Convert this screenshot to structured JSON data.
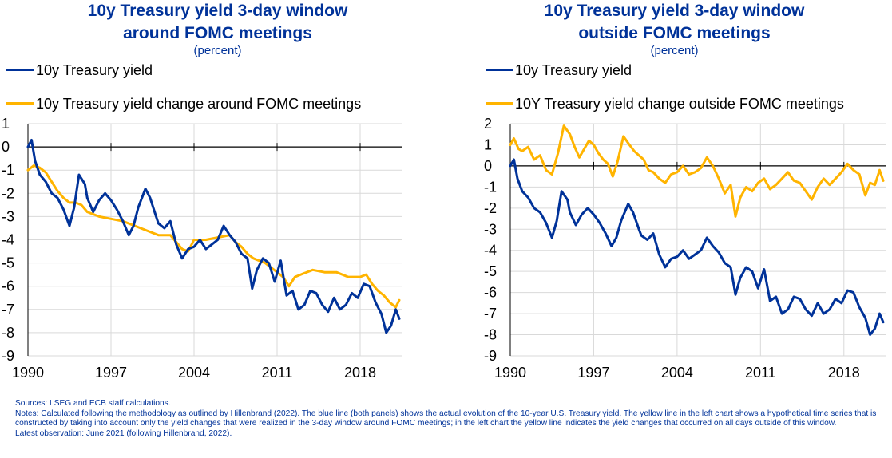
{
  "colors": {
    "title": "#003299",
    "blue": "#003299",
    "yellow": "#FFB400",
    "grid": "#d9d9d9"
  },
  "chart_data": [
    {
      "type": "line",
      "title": "10y Treasury yield 3-day window",
      "title2": "around FOMC meetings",
      "subtitle": "(percent)",
      "x_ticks": [
        "1990",
        "1997",
        "2004",
        "2011",
        "2018"
      ],
      "xlim": [
        1990,
        2021.5
      ],
      "ylim": [
        -9,
        1
      ],
      "y_ticks": [
        "1",
        "0",
        "-1",
        "-2",
        "-3",
        "-4",
        "-5",
        "-6",
        "-7",
        "-8",
        "-9"
      ],
      "legend": [
        "10y Treasury yield",
        "10y Treasury yield change around FOMC meetings"
      ],
      "series": [
        {
          "name": "10y Treasury yield",
          "color": "#003299",
          "x": [
            1990,
            1990.3,
            1990.6,
            1991,
            1991.5,
            1992,
            1992.5,
            1993,
            1993.5,
            1993.9,
            1994.3,
            1994.8,
            1995,
            1995.5,
            1996,
            1996.5,
            1997,
            1997.5,
            1998,
            1998.5,
            1998.9,
            1999.3,
            1999.9,
            2000.3,
            2000.8,
            2001,
            2001.5,
            2002,
            2002.5,
            2003,
            2003.5,
            2004,
            2004.5,
            2005,
            2005.5,
            2006,
            2006.5,
            2007,
            2007.5,
            2008,
            2008.5,
            2008.9,
            2009.3,
            2009.8,
            2010.3,
            2010.8,
            2011.3,
            2011.8,
            2012.3,
            2012.8,
            2013.3,
            2013.8,
            2014.3,
            2014.8,
            2015.3,
            2015.8,
            2016.3,
            2016.8,
            2017.3,
            2017.8,
            2018.3,
            2018.8,
            2019.3,
            2019.8,
            2020.2,
            2020.6,
            2021,
            2021.3
          ],
          "values": [
            0,
            0.3,
            -0.6,
            -1.2,
            -1.5,
            -2.0,
            -2.2,
            -2.7,
            -3.4,
            -2.6,
            -1.2,
            -1.6,
            -2.2,
            -2.8,
            -2.3,
            -2.0,
            -2.3,
            -2.7,
            -3.2,
            -3.8,
            -3.4,
            -2.6,
            -1.8,
            -2.2,
            -3.0,
            -3.3,
            -3.5,
            -3.2,
            -4.2,
            -4.8,
            -4.4,
            -4.3,
            -4.0,
            -4.4,
            -4.2,
            -4.0,
            -3.4,
            -3.8,
            -4.1,
            -4.6,
            -4.8,
            -6.1,
            -5.3,
            -4.8,
            -5.0,
            -5.8,
            -4.9,
            -6.4,
            -6.2,
            -7.0,
            -6.8,
            -6.2,
            -6.3,
            -6.8,
            -7.1,
            -6.5,
            -7.0,
            -6.8,
            -6.3,
            -6.5,
            -5.9,
            -6.0,
            -6.7,
            -7.2,
            -8.0,
            -7.7,
            -7.0,
            -7.4
          ]
        },
        {
          "name": "10y Treasury yield change around FOMC meetings",
          "color": "#FFB400",
          "x": [
            1990,
            1990.5,
            1991,
            1991.5,
            1992,
            1992.5,
            1993,
            1993.5,
            1994,
            1994.5,
            1995,
            1996,
            1997,
            1998,
            1999,
            2000,
            2001,
            2002,
            2002.5,
            2003,
            2003.5,
            2004,
            2005,
            2006,
            2007,
            2007.5,
            2008,
            2008.5,
            2009,
            2010,
            2011,
            2011.5,
            2012,
            2012.5,
            2013,
            2014,
            2015,
            2016,
            2017,
            2018,
            2018.5,
            2019,
            2019.5,
            2020,
            2020.5,
            2021,
            2021.3
          ],
          "values": [
            -1.0,
            -0.8,
            -0.9,
            -1.1,
            -1.5,
            -1.9,
            -2.2,
            -2.4,
            -2.4,
            -2.5,
            -2.8,
            -3.0,
            -3.1,
            -3.2,
            -3.4,
            -3.6,
            -3.8,
            -3.8,
            -4.1,
            -4.4,
            -4.5,
            -4.0,
            -4.0,
            -3.9,
            -3.8,
            -4.1,
            -4.3,
            -4.6,
            -4.8,
            -5.0,
            -5.4,
            -5.6,
            -6.0,
            -5.6,
            -5.5,
            -5.3,
            -5.4,
            -5.4,
            -5.6,
            -5.6,
            -5.5,
            -5.9,
            -6.2,
            -6.4,
            -6.7,
            -6.9,
            -6.6
          ]
        }
      ]
    },
    {
      "type": "line",
      "title": "10y Treasury yield 3-day window",
      "title2": "outside FOMC meetings",
      "subtitle": "(percent)",
      "x_ticks": [
        "1990",
        "1997",
        "2004",
        "2011",
        "2018"
      ],
      "xlim": [
        1990,
        2021.5
      ],
      "ylim": [
        -9,
        2
      ],
      "y_ticks": [
        "2",
        "1",
        "0",
        "-1",
        "-2",
        "-3",
        "-4",
        "-5",
        "-6",
        "-7",
        "-8",
        "-9"
      ],
      "legend": [
        "10y Treasury yield",
        "10Y Treasury yield change outside FOMC meetings"
      ],
      "series": [
        {
          "name": "10y Treasury yield",
          "color": "#003299",
          "x": [
            1990,
            1990.3,
            1990.6,
            1991,
            1991.5,
            1992,
            1992.5,
            1993,
            1993.5,
            1993.9,
            1994.3,
            1994.8,
            1995,
            1995.5,
            1996,
            1996.5,
            1997,
            1997.5,
            1998,
            1998.5,
            1998.9,
            1999.3,
            1999.9,
            2000.3,
            2000.8,
            2001,
            2001.5,
            2002,
            2002.5,
            2003,
            2003.5,
            2004,
            2004.5,
            2005,
            2005.5,
            2006,
            2006.5,
            2007,
            2007.5,
            2008,
            2008.5,
            2008.9,
            2009.3,
            2009.8,
            2010.3,
            2010.8,
            2011.3,
            2011.8,
            2012.3,
            2012.8,
            2013.3,
            2013.8,
            2014.3,
            2014.8,
            2015.3,
            2015.8,
            2016.3,
            2016.8,
            2017.3,
            2017.8,
            2018.3,
            2018.8,
            2019.3,
            2019.8,
            2020.2,
            2020.6,
            2021,
            2021.3
          ],
          "values": [
            0,
            0.3,
            -0.6,
            -1.2,
            -1.5,
            -2.0,
            -2.2,
            -2.7,
            -3.4,
            -2.6,
            -1.2,
            -1.6,
            -2.2,
            -2.8,
            -2.3,
            -2.0,
            -2.3,
            -2.7,
            -3.2,
            -3.8,
            -3.4,
            -2.6,
            -1.8,
            -2.2,
            -3.0,
            -3.3,
            -3.5,
            -3.2,
            -4.2,
            -4.8,
            -4.4,
            -4.3,
            -4.0,
            -4.4,
            -4.2,
            -4.0,
            -3.4,
            -3.8,
            -4.1,
            -4.6,
            -4.8,
            -6.1,
            -5.3,
            -4.8,
            -5.0,
            -5.8,
            -4.9,
            -6.4,
            -6.2,
            -7.0,
            -6.8,
            -6.2,
            -6.3,
            -6.8,
            -7.1,
            -6.5,
            -7.0,
            -6.8,
            -6.3,
            -6.5,
            -5.9,
            -6.0,
            -6.7,
            -7.2,
            -8.0,
            -7.7,
            -7.0,
            -7.4
          ]
        },
        {
          "name": "10Y Treasury yield change outside FOMC meetings",
          "color": "#FFB400",
          "x": [
            1990,
            1990.3,
            1990.7,
            1991,
            1991.5,
            1992,
            1992.5,
            1993,
            1993.5,
            1994,
            1994.5,
            1995,
            1995.4,
            1995.8,
            1996.2,
            1996.6,
            1997,
            1997.4,
            1997.8,
            1998.2,
            1998.6,
            1999,
            1999.5,
            2000,
            2000.4,
            2000.8,
            2001.2,
            2001.6,
            2002,
            2002.5,
            2003,
            2003.5,
            2004,
            2004.5,
            2005,
            2005.5,
            2006,
            2006.5,
            2007,
            2007.5,
            2008,
            2008.5,
            2008.9,
            2009.3,
            2009.8,
            2010.3,
            2010.8,
            2011.3,
            2011.8,
            2012.3,
            2012.8,
            2013.3,
            2013.8,
            2014.3,
            2014.8,
            2015.3,
            2015.8,
            2016.3,
            2016.8,
            2017.3,
            2017.8,
            2018.3,
            2018.8,
            2019.3,
            2019.8,
            2020.2,
            2020.6,
            2021,
            2021.3
          ],
          "values": [
            1.0,
            1.3,
            0.8,
            0.7,
            0.9,
            0.3,
            0.5,
            -0.2,
            -0.4,
            0.6,
            1.9,
            1.5,
            0.9,
            0.4,
            0.8,
            1.2,
            1.0,
            0.6,
            0.3,
            0.1,
            -0.5,
            0.2,
            1.4,
            1.0,
            0.7,
            0.5,
            0.3,
            -0.2,
            -0.3,
            -0.6,
            -0.8,
            -0.4,
            -0.3,
            0.0,
            -0.4,
            -0.3,
            -0.1,
            0.4,
            0.0,
            -0.6,
            -1.3,
            -0.9,
            -2.4,
            -1.5,
            -1.0,
            -1.2,
            -0.8,
            -0.6,
            -1.1,
            -0.9,
            -0.6,
            -0.3,
            -0.7,
            -0.8,
            -1.2,
            -1.6,
            -1.0,
            -0.6,
            -0.9,
            -0.6,
            -0.3,
            0.1,
            -0.2,
            -0.4,
            -1.4,
            -0.8,
            -0.9,
            -0.2,
            -0.7
          ]
        }
      ]
    }
  ],
  "notes": {
    "sources": "Sources: LSEG and ECB staff calculations.",
    "notes": "Notes: Calculated following the methodology as outlined by Hillenbrand (2022). The blue line (both panels) shows the actual evolution of the 10-year U.S. Treasury yield. The yellow line in the left chart shows a hypothetical time series that is constructed by taking into account only the yield changes that were realized in the 3-day window around FOMC meetings; in the left chart the yellow line indicates the yield changes that occurred on all days outside of this window.",
    "latest": "Latest observation: June 2021 (following Hillenbrand, 2022)."
  }
}
